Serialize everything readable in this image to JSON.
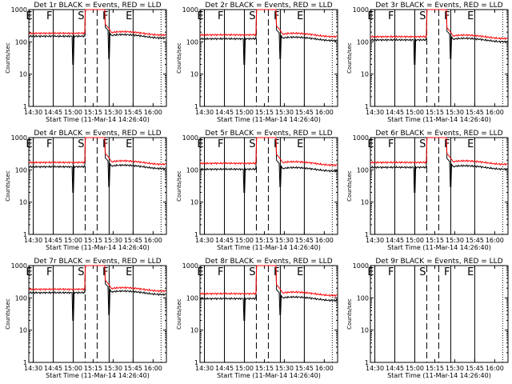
{
  "panels": [
    {
      "title": "Det 1r BLACK = Events, RED = LLD",
      "xlabel": "Start Time (11-Mar-14 14:26:40)",
      "ylabel": "Counts/sec",
      "black_base": 150,
      "red_base": 185,
      "has_data": true
    },
    {
      "title": "Det 2r BLACK = Events, RED = LLD",
      "xlabel": "Start Time (11-Mar-14 14:26:40)",
      "ylabel": "Counts/sec",
      "black_base": 125,
      "red_base": 165,
      "has_data": true
    },
    {
      "title": "Det 3r BLACK = Events, RED = LLD",
      "xlabel": "Start Time (11-Mar-14 14:26:40)",
      "ylabel": "Counts/sec",
      "black_base": 115,
      "red_base": 145,
      "has_data": true
    },
    {
      "title": "Det 4r BLACK = Events, RED = LLD",
      "xlabel": "Start Time (11-Mar-14 14:26:40)",
      "ylabel": "Counts/sec",
      "black_base": 125,
      "red_base": 170,
      "has_data": true
    },
    {
      "title": "Det 5r BLACK = Events, RED = LLD",
      "xlabel": "Start Time (11-Mar-14 14:26:40)",
      "ylabel": "Counts/sec",
      "black_base": 105,
      "red_base": 160,
      "has_data": true
    },
    {
      "title": "Det 6r BLACK = Events, RED = LLD",
      "xlabel": "Start Time (11-Mar-14 14:26:40)",
      "ylabel": "Counts/sec",
      "black_base": 120,
      "red_base": 170,
      "has_data": true
    },
    {
      "title": "Det 7r BLACK = Events, RED = LLD",
      "xlabel": "Start Time (11-Mar-14 14:26:40)",
      "ylabel": "Counts/sec",
      "black_base": 145,
      "red_base": 185,
      "has_data": true
    },
    {
      "title": "Det 8r BLACK = Events, RED = LLD",
      "xlabel": "Start Time (11-Mar-14 14:26:40)",
      "ylabel": "Counts/sec",
      "black_base": 95,
      "red_base": 135,
      "has_data": true
    },
    {
      "title": "Det 9r BLACK = Events, RED = LLD",
      "xlabel": "Start Time (11-Mar-14 14:26:40)",
      "ylabel": "Counts/sec",
      "black_base": 0,
      "red_base": 0,
      "has_data": false
    }
  ],
  "x_ticks": [
    "14:30",
    "14:45",
    "15:00",
    "15:15",
    "15:30",
    "15:45",
    "16:00"
  ],
  "y_ticks": [
    "1",
    "10",
    "100",
    "1000"
  ],
  "markers": [
    {
      "time": "14:30",
      "label": "E",
      "style": "solid"
    },
    {
      "time": "14:45",
      "label": "F",
      "style": "solid"
    },
    {
      "time": "15:00",
      "label": "",
      "style": "solid"
    },
    {
      "time": "15:09",
      "label": "S",
      "style": "dashed"
    },
    {
      "time": "15:18",
      "label": "",
      "style": "dashed"
    },
    {
      "time": "15:27",
      "label": "F",
      "style": "solid"
    },
    {
      "time": "15:45",
      "label": "E",
      "style": "solid"
    },
    {
      "time": "16:06",
      "label": "",
      "style": "dotted"
    }
  ],
  "colors": {
    "events": "#000000",
    "lld": "#ff0000"
  },
  "chart_data": {
    "type": "line",
    "xlim": [
      "14:26:40",
      "16:10"
    ],
    "ylim": [
      1,
      1000
    ],
    "yscale": "log",
    "series_names": [
      "Events",
      "LLD"
    ],
    "excursion_window": [
      "15:09",
      "15:24"
    ],
    "excursion_peak": 1000
  }
}
